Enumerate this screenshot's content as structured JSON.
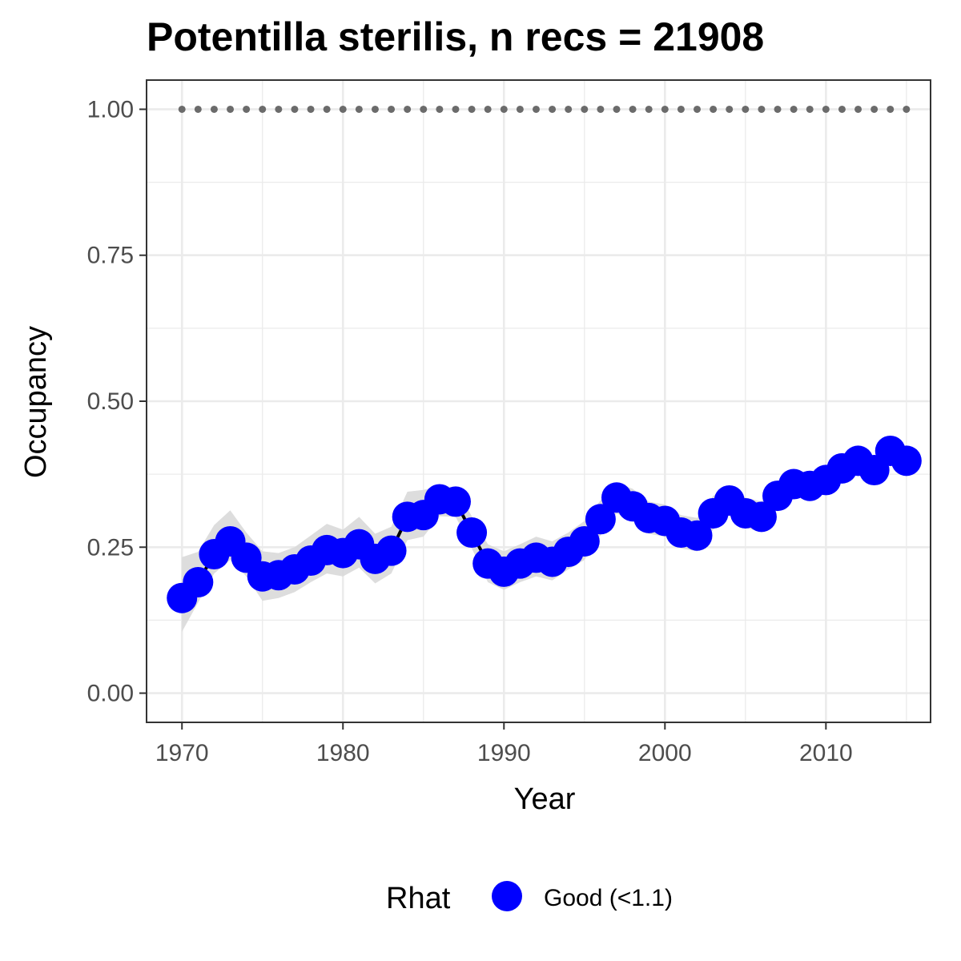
{
  "chart_data": {
    "type": "line",
    "title": "Potentilla sterilis, n recs = 21908",
    "xlabel": "Year",
    "ylabel": "Occupancy",
    "xlim": [
      1967.8,
      2016.5
    ],
    "ylim": [
      -0.05,
      1.05
    ],
    "xticks": [
      1970,
      1980,
      1990,
      2000,
      2010
    ],
    "xtick_labels": [
      "1970",
      "1980",
      "1990",
      "2000",
      "2010"
    ],
    "yticks": [
      0,
      0.25,
      0.5,
      0.75,
      1.0
    ],
    "ytick_labels": [
      "0.00",
      "0.25",
      "0.50",
      "0.75",
      "1.00"
    ],
    "grid": true,
    "legend": {
      "title": "Rhat",
      "position": "bottom",
      "entries": [
        {
          "label": "Good (<1.1)",
          "color": "#0000ff"
        }
      ]
    },
    "colors": {
      "points": "#0000ff",
      "line": "#000000",
      "ribbon": "#d9d9d9",
      "reference": "#6b6b6b",
      "panel_border": "#333333",
      "grid": "#ebebeb"
    },
    "x": [
      1970,
      1971,
      1972,
      1973,
      1974,
      1975,
      1976,
      1977,
      1978,
      1979,
      1980,
      1981,
      1982,
      1983,
      1984,
      1985,
      1986,
      1987,
      1988,
      1989,
      1990,
      1991,
      1992,
      1993,
      1994,
      1995,
      1996,
      1997,
      1998,
      1999,
      2000,
      2001,
      2002,
      2003,
      2004,
      2005,
      2006,
      2007,
      2008,
      2009,
      2010,
      2011,
      2012,
      2013,
      2014,
      2015
    ],
    "series": [
      {
        "values": [
          0.163,
          0.19,
          0.238,
          0.26,
          0.232,
          0.2,
          0.202,
          0.212,
          0.227,
          0.245,
          0.24,
          0.255,
          0.23,
          0.244,
          0.302,
          0.305,
          0.332,
          0.328,
          0.275,
          0.222,
          0.208,
          0.222,
          0.232,
          0.225,
          0.242,
          0.26,
          0.298,
          0.335,
          0.32,
          0.3,
          0.295,
          0.275,
          0.27,
          0.308,
          0.33,
          0.308,
          0.302,
          0.338,
          0.358,
          0.355,
          0.365,
          0.385,
          0.398,
          0.382,
          0.415,
          0.398
        ],
        "lower": [
          0.105,
          0.155,
          0.205,
          0.228,
          0.2,
          0.158,
          0.163,
          0.173,
          0.19,
          0.205,
          0.2,
          0.215,
          0.188,
          0.205,
          0.262,
          0.268,
          0.303,
          0.302,
          0.248,
          0.19,
          0.177,
          0.19,
          0.2,
          0.193,
          0.212,
          0.228,
          0.27,
          0.308,
          0.295,
          0.273,
          0.268,
          0.248,
          0.243,
          0.28,
          0.305,
          0.283,
          0.277,
          0.315,
          0.335,
          0.333,
          0.343,
          0.365,
          0.378,
          0.362,
          0.395,
          0.38
        ],
        "upper": [
          0.233,
          0.242,
          0.288,
          0.313,
          0.275,
          0.243,
          0.24,
          0.25,
          0.27,
          0.29,
          0.28,
          0.302,
          0.273,
          0.285,
          0.345,
          0.348,
          0.355,
          0.353,
          0.303,
          0.255,
          0.243,
          0.255,
          0.268,
          0.26,
          0.275,
          0.295,
          0.33,
          0.36,
          0.35,
          0.328,
          0.323,
          0.305,
          0.3,
          0.338,
          0.355,
          0.335,
          0.328,
          0.363,
          0.38,
          0.378,
          0.388,
          0.405,
          0.418,
          0.403,
          0.435,
          0.418
        ]
      },
      {
        "values": [
          1,
          1,
          1,
          1,
          1,
          1,
          1,
          1,
          1,
          1,
          1,
          1,
          1,
          1,
          1,
          1,
          1,
          1,
          1,
          1,
          1,
          1,
          1,
          1,
          1,
          1,
          1,
          1,
          1,
          1,
          1,
          1,
          1,
          1,
          1,
          1,
          1,
          1,
          1,
          1,
          1,
          1,
          1,
          1,
          1,
          1
        ]
      }
    ]
  }
}
